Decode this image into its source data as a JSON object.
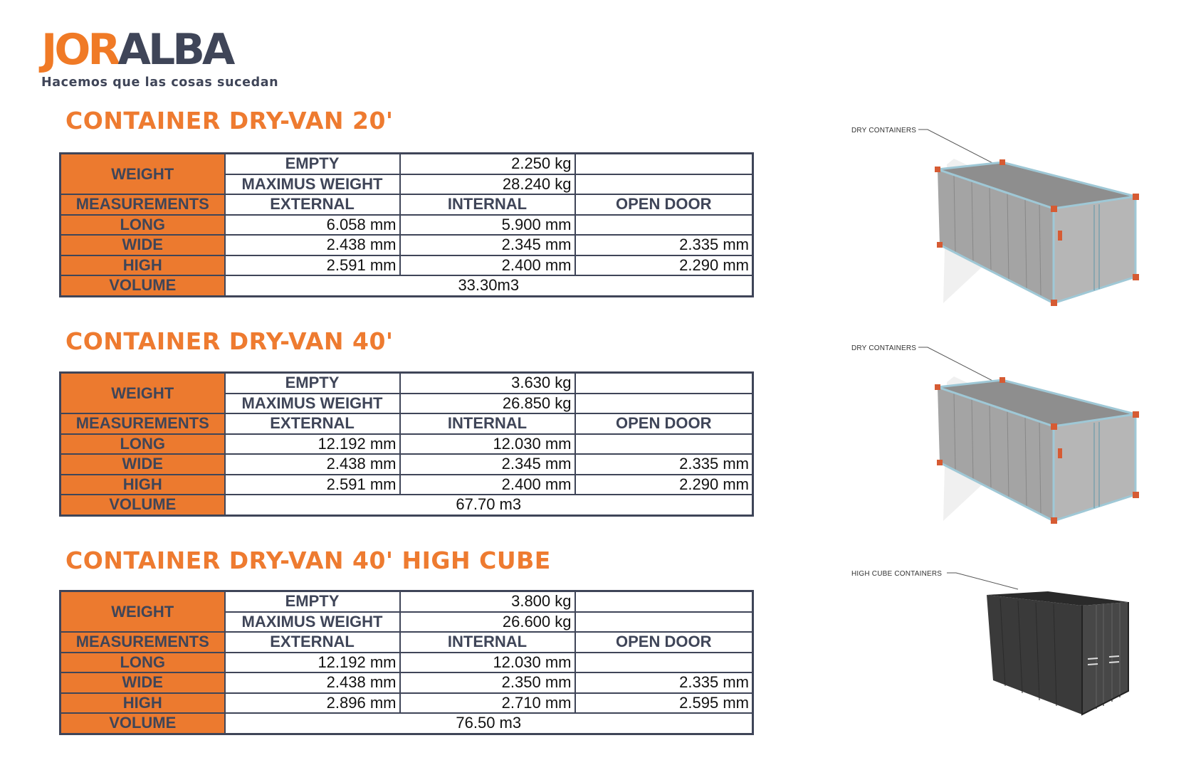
{
  "logo": {
    "part1": "JOR",
    "part2": "ALBA",
    "tagline": "Hacemos que las cosas sucedan"
  },
  "colors": {
    "accent": "#ee7b30",
    "dark": "#3f4558"
  },
  "sections": [
    {
      "title": "CONTAINER DRY-VAN 20'",
      "callout": "DRY CONTAINERS",
      "weight_label": "WEIGHT",
      "empty_label": "EMPTY",
      "empty_value": "2.250 kg",
      "max_label": "MAXIMUS WEIGHT",
      "max_value": "28.240 kg",
      "measurements_label": "MEASUREMENTS",
      "col_external": "EXTERNAL",
      "col_internal": "INTERNAL",
      "col_open_door": "OPEN DOOR",
      "long_label": "LONG",
      "long_external": "6.058 mm",
      "long_internal": "5.900 mm",
      "long_open_door": "",
      "wide_label": "WIDE",
      "wide_external": "2.438 mm",
      "wide_internal": "2.345 mm",
      "wide_open_door": "2.335 mm",
      "high_label": "HIGH",
      "high_external": "2.591 mm",
      "high_internal": "2.400 mm",
      "high_open_door": "2.290 mm",
      "volume_label": "VOLUME",
      "volume_value": "33.30m3"
    },
    {
      "title": "CONTAINER DRY-VAN 40'",
      "callout": "DRY CONTAINERS",
      "weight_label": "WEIGHT",
      "empty_label": "EMPTY",
      "empty_value": "3.630 kg",
      "max_label": "MAXIMUS WEIGHT",
      "max_value": "26.850 kg",
      "measurements_label": "MEASUREMENTS",
      "col_external": "EXTERNAL",
      "col_internal": "INTERNAL",
      "col_open_door": "OPEN DOOR",
      "long_label": "LONG",
      "long_external": "12.192 mm",
      "long_internal": "12.030 mm",
      "long_open_door": "",
      "wide_label": "WIDE",
      "wide_external": "2.438 mm",
      "wide_internal": "2.345 mm",
      "wide_open_door": "2.335 mm",
      "high_label": "HIGH",
      "high_external": "2.591 mm",
      "high_internal": "2.400 mm",
      "high_open_door": "2.290 mm",
      "volume_label": "VOLUME",
      "volume_value": "67.70 m3"
    },
    {
      "title": "CONTAINER DRY-VAN 40' HIGH CUBE",
      "callout": "HIGH CUBE CONTAINERS",
      "weight_label": "WEIGHT",
      "empty_label": "EMPTY",
      "empty_value": "3.800 kg",
      "max_label": "MAXIMUS WEIGHT",
      "max_value": "26.600 kg",
      "measurements_label": "MEASUREMENTS",
      "col_external": "EXTERNAL",
      "col_internal": "INTERNAL",
      "col_open_door": "OPEN DOOR",
      "long_label": "LONG",
      "long_external": "12.192 mm",
      "long_internal": "12.030 mm",
      "long_open_door": "",
      "wide_label": "WIDE",
      "wide_external": "2.438 mm",
      "wide_internal": "2.350 mm",
      "wide_open_door": "2.335 mm",
      "high_label": "HIGH",
      "high_external": "2.896 mm",
      "high_internal": "2.710 mm",
      "high_open_door": "2.595 mm",
      "volume_label": "VOLUME",
      "volume_value": "76.50 m3"
    }
  ]
}
